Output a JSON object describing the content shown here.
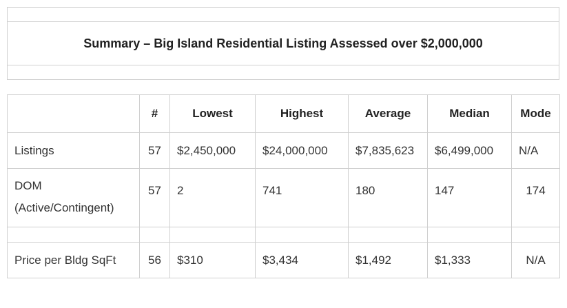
{
  "title": "Summary – Big Island Residential Listing Assessed over $2,000,000",
  "columns": [
    "",
    "#",
    "Lowest",
    "Highest",
    "Average",
    "Median",
    "Mode"
  ],
  "rows": [
    {
      "label": "Listings",
      "count": "57",
      "lowest": "$2,450,000",
      "highest": "$24,000,000",
      "average": "$7,835,623",
      "median": "$6,499,000",
      "mode": "N/A"
    },
    {
      "label_line1": "DOM",
      "label_line2": "(Active/Contingent)",
      "count": "57",
      "lowest": "2",
      "highest": "741",
      "average": "180",
      "median": "147",
      "mode": "174"
    },
    {
      "label": "Price per Bldg SqFt",
      "count": "56",
      "lowest": "$310",
      "highest": "$3,434",
      "average": "$1,492",
      "median": "$1,333",
      "mode": "N/A"
    }
  ]
}
